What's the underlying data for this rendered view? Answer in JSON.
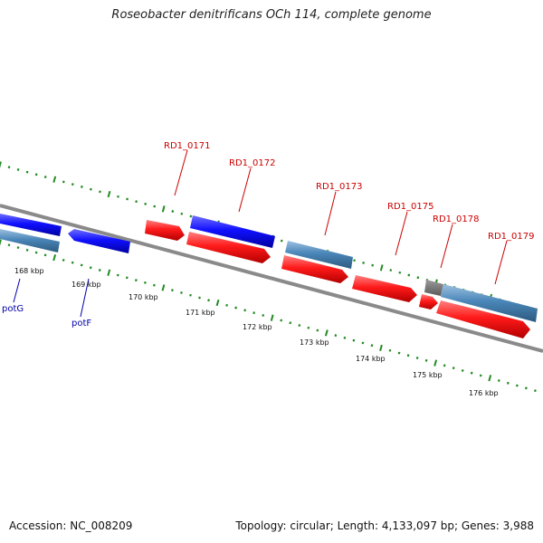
{
  "title": "Roseobacter denitrificans OCh 114, complete genome",
  "footer": {
    "accession": "Accession: NC_008209",
    "stats": "Topology: circular; Length: 4,133,097 bp; Genes: 3,988"
  },
  "colors": {
    "backbone": "#808080",
    "tick": "#228b22",
    "forward_gene": "#ff0000",
    "reverse_gene": "#0000ff",
    "other_gene": "#4682b4",
    "label_red": "#cc0000",
    "label_blue": "#0000aa"
  },
  "kbp_labels": [
    "168 kbp",
    "169 kbp",
    "170 kbp",
    "171 kbp",
    "172 kbp",
    "173 kbp",
    "174 kbp",
    "175 kbp",
    "176 kbp"
  ],
  "gene_labels": [
    "RD1_0171",
    "RD1_0172",
    "RD1_0173",
    "RD1_0175",
    "RD1_0178",
    "RD1_0179",
    "potG",
    "potF"
  ]
}
